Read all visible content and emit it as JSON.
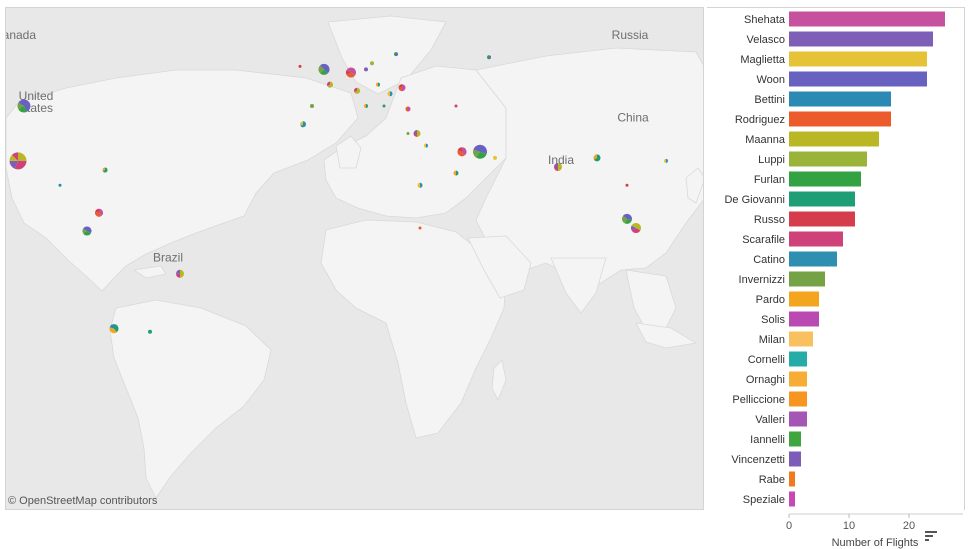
{
  "map": {
    "attribution": "© OpenStreetMap contributors",
    "labels": [
      {
        "text": "Canada",
        "lon": -103,
        "lat": 62
      },
      {
        "text": "United",
        "lon": -96,
        "lat": 42
      },
      {
        "text": "States",
        "lon": -96,
        "lat": 38
      },
      {
        "text": "Russia",
        "lon": 102,
        "lat": 62
      },
      {
        "text": "China",
        "lon": 103,
        "lat": 35
      },
      {
        "text": "India",
        "lon": 79,
        "lat": 21
      },
      {
        "text": "Brazil",
        "lon": -52,
        "lat": -11
      }
    ],
    "palette": [
      "#c6519e",
      "#7e5fb7",
      "#e6c336",
      "#6762c0",
      "#2a8ab4",
      "#eb5b2c",
      "#b9b824",
      "#9ab43a",
      "#33a243",
      "#1f9e75",
      "#d53d4d",
      "#cf4179",
      "#2e8fb0",
      "#74a244",
      "#f3a51e"
    ],
    "pies": [
      {
        "lon": -112,
        "lat": 62,
        "size": 4,
        "slices": [
          1,
          1
        ]
      },
      {
        "lon": -100,
        "lat": 40,
        "size": 13,
        "slices": [
          5,
          3,
          2,
          2
        ]
      },
      {
        "lon": -102,
        "lat": 22,
        "size": 17,
        "slices": [
          4,
          5,
          3,
          2,
          2
        ]
      },
      {
        "lon": -73,
        "lat": 19,
        "size": 5,
        "slices": [
          2,
          1
        ]
      },
      {
        "lon": -88,
        "lat": 14,
        "size": 3,
        "slices": [
          1
        ]
      },
      {
        "lon": -75,
        "lat": 5,
        "size": 8,
        "slices": [
          2,
          2,
          1
        ]
      },
      {
        "lon": -79,
        "lat": -1,
        "size": 9,
        "slices": [
          2,
          2,
          1,
          1
        ]
      },
      {
        "lon": -48,
        "lat": -15,
        "size": 8,
        "slices": [
          2,
          1,
          1
        ]
      },
      {
        "lon": -70,
        "lat": -33,
        "size": 9,
        "slices": [
          2,
          2,
          1
        ]
      },
      {
        "lon": -58,
        "lat": -34,
        "size": 4,
        "slices": [
          1
        ]
      },
      {
        "lon": -8,
        "lat": 53,
        "size": 3,
        "slices": [
          1
        ]
      },
      {
        "lon": 0,
        "lat": 52,
        "size": 11,
        "slices": [
          3,
          2,
          2,
          1
        ]
      },
      {
        "lon": 2,
        "lat": 47,
        "size": 6,
        "slices": [
          2,
          1
        ]
      },
      {
        "lon": -4,
        "lat": 40,
        "size": 4,
        "slices": [
          1
        ]
      },
      {
        "lon": -7,
        "lat": 34,
        "size": 6,
        "slices": [
          2,
          1
        ]
      },
      {
        "lon": 9,
        "lat": 51,
        "size": 10,
        "slices": [
          2,
          2,
          1,
          1
        ]
      },
      {
        "lon": 14,
        "lat": 52,
        "size": 4,
        "slices": [
          1
        ]
      },
      {
        "lon": 11,
        "lat": 45,
        "size": 6,
        "slices": [
          2,
          1
        ]
      },
      {
        "lon": 18,
        "lat": 47,
        "size": 4,
        "slices": [
          1,
          1
        ]
      },
      {
        "lon": 22,
        "lat": 44,
        "size": 5,
        "slices": [
          1,
          1
        ]
      },
      {
        "lon": 26,
        "lat": 46,
        "size": 7,
        "slices": [
          2,
          1,
          1
        ]
      },
      {
        "lon": 24,
        "lat": 57,
        "size": 4,
        "slices": [
          1,
          1
        ]
      },
      {
        "lon": 16,
        "lat": 54,
        "size": 4,
        "slices": [
          1
        ]
      },
      {
        "lon": 14,
        "lat": 40,
        "size": 4,
        "slices": [
          1,
          1
        ]
      },
      {
        "lon": 20,
        "lat": 40,
        "size": 3,
        "slices": [
          1
        ]
      },
      {
        "lon": 28,
        "lat": 39,
        "size": 5,
        "slices": [
          1,
          1
        ]
      },
      {
        "lon": 44,
        "lat": 40,
        "size": 3,
        "slices": [
          1
        ]
      },
      {
        "lon": 31,
        "lat": 31,
        "size": 7,
        "slices": [
          2,
          1,
          1
        ]
      },
      {
        "lon": 28,
        "lat": 31,
        "size": 3,
        "slices": [
          1
        ]
      },
      {
        "lon": 34,
        "lat": 27,
        "size": 4,
        "slices": [
          1,
          1
        ]
      },
      {
        "lon": 46,
        "lat": 25,
        "size": 9,
        "slices": [
          2,
          2,
          1
        ]
      },
      {
        "lon": 52,
        "lat": 25,
        "size": 14,
        "slices": [
          3,
          3,
          2,
          2
        ]
      },
      {
        "lon": 57,
        "lat": 23,
        "size": 4,
        "slices": [
          1
        ]
      },
      {
        "lon": 44,
        "lat": 18,
        "size": 5,
        "slices": [
          1,
          1
        ]
      },
      {
        "lon": 32,
        "lat": 14,
        "size": 5,
        "slices": [
          1,
          1
        ]
      },
      {
        "lon": 32,
        "lat": 0,
        "size": 3,
        "slices": [
          1
        ]
      },
      {
        "lon": 55,
        "lat": 56,
        "size": 4,
        "slices": [
          1,
          1
        ]
      },
      {
        "lon": 78,
        "lat": 20,
        "size": 8,
        "slices": [
          2,
          1,
          1
        ]
      },
      {
        "lon": 91,
        "lat": 23,
        "size": 7,
        "slices": [
          2,
          1
        ]
      },
      {
        "lon": 114,
        "lat": 22,
        "size": 4,
        "slices": [
          1,
          1
        ]
      },
      {
        "lon": 101,
        "lat": 14,
        "size": 3,
        "slices": [
          1
        ]
      },
      {
        "lon": 101,
        "lat": 3,
        "size": 10,
        "slices": [
          2,
          2,
          2,
          1
        ]
      },
      {
        "lon": 104,
        "lat": 0,
        "size": 10,
        "slices": [
          2,
          2,
          1,
          1
        ]
      }
    ]
  },
  "chart_data": {
    "type": "bar",
    "orientation": "horizontal",
    "categories": [
      "Shehata",
      "Velasco",
      "Maglietta",
      "Woon",
      "Bettini",
      "Rodriguez",
      "Maanna",
      "Luppi",
      "Furlan",
      "De Giovanni",
      "Russo",
      "Scarafile",
      "Catino",
      "Invernizzi",
      "Pardo",
      "Solis",
      "Milan",
      "Cornelli",
      "Ornaghi",
      "Pelliccione",
      "Valleri",
      "Iannelli",
      "Vincenzetti",
      "Rabe",
      "Speziale"
    ],
    "values": [
      26,
      24,
      23,
      23,
      17,
      17,
      15,
      13,
      12,
      11,
      11,
      9,
      8,
      6,
      5,
      5,
      4,
      3,
      3,
      3,
      3,
      2,
      2,
      1,
      1
    ],
    "colors": [
      "#c6519e",
      "#7e5fb7",
      "#e6c336",
      "#6762c0",
      "#2a8ab4",
      "#eb5b2c",
      "#b9b824",
      "#9ab43a",
      "#33a243",
      "#1f9e75",
      "#d53d4d",
      "#cf4179",
      "#2e8fb0",
      "#74a244",
      "#f3a51e",
      "#ba49b1",
      "#f8c05e",
      "#26aca8",
      "#f7ac33",
      "#f79520",
      "#a556b5",
      "#3fa53f",
      "#7b5db9",
      "#f17a1f",
      "#c749b4"
    ],
    "xlabel": "Number of Flights",
    "ylabel": "",
    "xlim": [
      0,
      28
    ],
    "xticks": [
      0,
      10,
      20
    ]
  }
}
